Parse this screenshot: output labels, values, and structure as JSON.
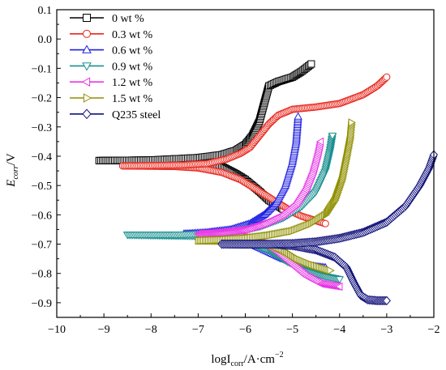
{
  "chart_data": {
    "type": "line",
    "xlabel": "logI",
    "xlabel_sub": "corr",
    "xlabel_unit": "/A·cm",
    "xlabel_exp": "−2",
    "ylabel": "E",
    "ylabel_sub": "corr",
    "ylabel_unit": "/V",
    "xlim": [
      -10,
      -2
    ],
    "ylim": [
      -0.95,
      0.1
    ],
    "x_ticks": [
      "−10",
      "−9",
      "−8",
      "−7",
      "−6",
      "−5",
      "−4",
      "−3",
      "−2"
    ],
    "x_tick_values": [
      -10,
      -9,
      -8,
      -7,
      -6,
      -5,
      -4,
      -3,
      -2
    ],
    "y_ticks": [
      "0.1",
      "0.0",
      "−0.1",
      "−0.2",
      "−0.3",
      "−0.4",
      "−0.5",
      "−0.6",
      "−0.7",
      "−0.8",
      "−0.9"
    ],
    "y_tick_values": [
      0.1,
      0.0,
      -0.1,
      -0.2,
      -0.3,
      -0.4,
      -0.5,
      -0.6,
      -0.7,
      -0.8,
      -0.9
    ],
    "legend_position": "top-left",
    "grid": false,
    "series": [
      {
        "name": "0 wt %",
        "color": "#000000",
        "marker": "square",
        "anodic": [
          [
            -9.1,
            -0.415
          ],
          [
            -8.0,
            -0.413
          ],
          [
            -7.0,
            -0.405
          ],
          [
            -6.5,
            -0.395
          ],
          [
            -6.2,
            -0.38
          ],
          [
            -6.0,
            -0.36
          ],
          [
            -5.85,
            -0.33
          ],
          [
            -5.7,
            -0.28
          ],
          [
            -5.6,
            -0.22
          ],
          [
            -5.5,
            -0.16
          ],
          [
            -5.3,
            -0.145
          ],
          [
            -5.0,
            -0.13
          ],
          [
            -4.8,
            -0.11
          ],
          [
            -4.6,
            -0.085
          ]
        ],
        "cathodic": [
          [
            -9.1,
            -0.415
          ],
          [
            -8.0,
            -0.415
          ],
          [
            -7.0,
            -0.42
          ],
          [
            -6.5,
            -0.435
          ],
          [
            -6.2,
            -0.46
          ],
          [
            -6.0,
            -0.48
          ],
          [
            -5.7,
            -0.52
          ],
          [
            -5.5,
            -0.55
          ],
          [
            -5.3,
            -0.57
          ],
          [
            -5.2,
            -0.58
          ]
        ]
      },
      {
        "name": "0.3 wt %",
        "color": "#e8261c",
        "marker": "circle",
        "anodic": [
          [
            -8.6,
            -0.433
          ],
          [
            -8.0,
            -0.432
          ],
          [
            -7.3,
            -0.43
          ],
          [
            -6.8,
            -0.425
          ],
          [
            -6.4,
            -0.41
          ],
          [
            -6.1,
            -0.39
          ],
          [
            -5.9,
            -0.37
          ],
          [
            -5.7,
            -0.33
          ],
          [
            -5.5,
            -0.29
          ],
          [
            -5.3,
            -0.26
          ],
          [
            -5.0,
            -0.24
          ],
          [
            -4.5,
            -0.232
          ],
          [
            -4.0,
            -0.22
          ],
          [
            -3.5,
            -0.19
          ],
          [
            -3.2,
            -0.16
          ],
          [
            -3.0,
            -0.13
          ]
        ],
        "cathodic": [
          [
            -8.6,
            -0.433
          ],
          [
            -7.5,
            -0.435
          ],
          [
            -7.0,
            -0.44
          ],
          [
            -6.5,
            -0.455
          ],
          [
            -6.1,
            -0.48
          ],
          [
            -5.8,
            -0.51
          ],
          [
            -5.5,
            -0.54
          ],
          [
            -5.2,
            -0.57
          ],
          [
            -5.0,
            -0.59
          ],
          [
            -4.8,
            -0.605
          ],
          [
            -4.5,
            -0.62
          ],
          [
            -4.3,
            -0.63
          ]
        ]
      },
      {
        "name": "0.6 wt %",
        "color": "#1f1fe0",
        "marker": "triangle-up",
        "anodic": [
          [
            -7.3,
            -0.665
          ],
          [
            -6.8,
            -0.66
          ],
          [
            -6.3,
            -0.65
          ],
          [
            -5.9,
            -0.63
          ],
          [
            -5.6,
            -0.6
          ],
          [
            -5.35,
            -0.56
          ],
          [
            -5.15,
            -0.5
          ],
          [
            -5.0,
            -0.42
          ],
          [
            -4.92,
            -0.35
          ],
          [
            -4.88,
            -0.265
          ]
        ],
        "cathodic": [
          [
            -7.3,
            -0.665
          ],
          [
            -6.5,
            -0.67
          ],
          [
            -6.0,
            -0.69
          ],
          [
            -5.6,
            -0.72
          ],
          [
            -5.2,
            -0.75
          ],
          [
            -4.8,
            -0.77
          ],
          [
            -4.3,
            -0.78
          ]
        ]
      },
      {
        "name": "0.9 wt %",
        "color": "#1a8f8f",
        "marker": "triangle-down",
        "anodic": [
          [
            -8.5,
            -0.668
          ],
          [
            -7.5,
            -0.668
          ],
          [
            -6.8,
            -0.665
          ],
          [
            -6.2,
            -0.655
          ],
          [
            -5.7,
            -0.64
          ],
          [
            -5.2,
            -0.61
          ],
          [
            -4.8,
            -0.57
          ],
          [
            -4.5,
            -0.52
          ],
          [
            -4.3,
            -0.45
          ],
          [
            -4.2,
            -0.38
          ],
          [
            -4.15,
            -0.33
          ]
        ],
        "cathodic": [
          [
            -8.5,
            -0.668
          ],
          [
            -7.0,
            -0.672
          ],
          [
            -6.0,
            -0.69
          ],
          [
            -5.5,
            -0.72
          ],
          [
            -5.1,
            -0.76
          ],
          [
            -4.7,
            -0.79
          ],
          [
            -4.3,
            -0.81
          ],
          [
            -4.0,
            -0.82
          ]
        ]
      },
      {
        "name": "1.2 wt %",
        "color": "#e636e6",
        "marker": "triangle-left",
        "anodic": [
          [
            -7.0,
            -0.665
          ],
          [
            -6.5,
            -0.66
          ],
          [
            -6.0,
            -0.65
          ],
          [
            -5.6,
            -0.63
          ],
          [
            -5.2,
            -0.6
          ],
          [
            -4.9,
            -0.56
          ],
          [
            -4.7,
            -0.51
          ],
          [
            -4.55,
            -0.45
          ],
          [
            -4.45,
            -0.39
          ],
          [
            -4.4,
            -0.35
          ]
        ],
        "cathodic": [
          [
            -7.0,
            -0.665
          ],
          [
            -6.2,
            -0.67
          ],
          [
            -5.7,
            -0.69
          ],
          [
            -5.3,
            -0.73
          ],
          [
            -5.0,
            -0.77
          ],
          [
            -4.7,
            -0.81
          ],
          [
            -4.4,
            -0.835
          ],
          [
            -4.0,
            -0.845
          ]
        ]
      },
      {
        "name": "1.5 wt %",
        "color": "#8f8f00",
        "marker": "triangle-right",
        "anodic": [
          [
            -7.0,
            -0.688
          ],
          [
            -6.5,
            -0.685
          ],
          [
            -6.0,
            -0.68
          ],
          [
            -5.5,
            -0.67
          ],
          [
            -5.0,
            -0.655
          ],
          [
            -4.6,
            -0.63
          ],
          [
            -4.3,
            -0.6
          ],
          [
            -4.1,
            -0.55
          ],
          [
            -3.95,
            -0.48
          ],
          [
            -3.85,
            -0.4
          ],
          [
            -3.78,
            -0.34
          ],
          [
            -3.75,
            -0.285
          ]
        ],
        "cathodic": [
          [
            -7.0,
            -0.688
          ],
          [
            -6.0,
            -0.69
          ],
          [
            -5.5,
            -0.7
          ],
          [
            -5.2,
            -0.72
          ],
          [
            -4.9,
            -0.75
          ],
          [
            -4.6,
            -0.77
          ],
          [
            -4.3,
            -0.785
          ],
          [
            -4.2,
            -0.79
          ]
        ]
      },
      {
        "name": "Q235 steel",
        "color": "#10107a",
        "marker": "diamond",
        "anodic": [
          [
            -6.5,
            -0.7
          ],
          [
            -6.0,
            -0.7
          ],
          [
            -5.5,
            -0.7
          ],
          [
            -5.0,
            -0.698
          ],
          [
            -4.5,
            -0.692
          ],
          [
            -4.0,
            -0.68
          ],
          [
            -3.5,
            -0.66
          ],
          [
            -3.0,
            -0.625
          ],
          [
            -2.6,
            -0.57
          ],
          [
            -2.3,
            -0.5
          ],
          [
            -2.1,
            -0.44
          ],
          [
            -2.0,
            -0.395
          ]
        ],
        "cathodic": [
          [
            -6.5,
            -0.7
          ],
          [
            -5.5,
            -0.7
          ],
          [
            -5.0,
            -0.705
          ],
          [
            -4.5,
            -0.72
          ],
          [
            -4.1,
            -0.745
          ],
          [
            -3.85,
            -0.78
          ],
          [
            -3.7,
            -0.83
          ],
          [
            -3.55,
            -0.875
          ],
          [
            -3.4,
            -0.89
          ],
          [
            -3.2,
            -0.893
          ],
          [
            -3.0,
            -0.893
          ]
        ]
      }
    ]
  }
}
